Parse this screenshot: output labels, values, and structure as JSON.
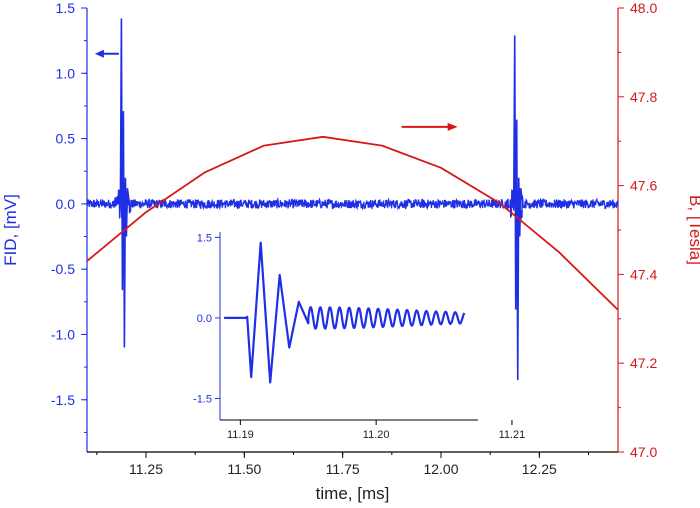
{
  "colors": {
    "fid": "#1f2fe6",
    "field": "#d81818",
    "axis_text": "#222222"
  },
  "chart_data": [
    {
      "type": "line",
      "role": "main",
      "xlabel": "time, [ms]",
      "ylabel_left": "FID, [mV]",
      "ylabel_right": "B, [Tesla]",
      "xlim": [
        11.1,
        12.45
      ],
      "ylim_left": [
        -1.9,
        1.5
      ],
      "ylim_right": [
        47.0,
        48.0
      ],
      "x_ticks": [
        "11.25",
        "11.50",
        "11.75",
        "12.00",
        "12.25"
      ],
      "y_ticks_left": [
        "1.5",
        "1.0",
        "0.5",
        "0.0",
        "-0.5",
        "-1.0",
        "-1.5"
      ],
      "y_ticks_right": [
        "48.0",
        "47.8",
        "47.6",
        "47.4",
        "47.2",
        "47.0"
      ],
      "series": [
        {
          "axis": "left",
          "description": "FID signal: noise around 0 with sharp echo bursts",
          "baseline": 0.0,
          "noise_amplitude": 0.035,
          "bursts": [
            {
              "x": 11.19,
              "max": 1.42,
              "min": -1.1
            },
            {
              "x": 12.19,
              "max": 1.29,
              "min": -1.35
            }
          ]
        },
        {
          "axis": "right",
          "description": "Magnetic field B(t), approximately parabolic",
          "x": [
            11.1,
            11.25,
            11.4,
            11.55,
            11.7,
            11.85,
            12.0,
            12.15,
            12.3,
            12.45
          ],
          "y": [
            47.43,
            47.54,
            47.63,
            47.69,
            47.71,
            47.69,
            47.64,
            47.56,
            47.45,
            47.32
          ]
        }
      ],
      "annotations": [
        {
          "type": "arrow",
          "direction": "left",
          "color": "fid",
          "x_pos": 11.12,
          "y_value": 1.15
        },
        {
          "type": "arrow",
          "direction": "right",
          "color": "field",
          "x_pos": 11.9,
          "y_value": 0.59
        }
      ]
    },
    {
      "type": "line",
      "role": "inset",
      "xlim": [
        11.1885,
        11.2075
      ],
      "ylim": [
        -1.9,
        1.6
      ],
      "x_ticks": [
        "11.19",
        "11.20",
        "11.21"
      ],
      "y_ticks": [
        "1.5",
        "0.0",
        "-1.5"
      ],
      "series": [
        {
          "description": "Zoom of first FID echo: damped oscillation",
          "start_x": 11.1905,
          "peaks": [
            {
              "x": 11.1908,
              "y": -1.1
            },
            {
              "x": 11.1915,
              "y": 1.4
            },
            {
              "x": 11.1922,
              "y": -1.2
            },
            {
              "x": 11.1929,
              "y": 0.8
            },
            {
              "x": 11.1936,
              "y": -0.55
            },
            {
              "x": 11.1943,
              "y": 0.3
            },
            {
              "x": 11.195,
              "y": -0.1
            }
          ],
          "tail_amplitude": 0.2,
          "tail_period": 0.00071,
          "end_x": 11.2065
        }
      ]
    }
  ]
}
